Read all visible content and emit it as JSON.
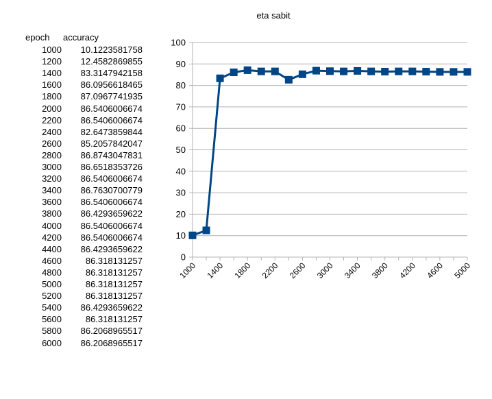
{
  "chart_data": {
    "type": "line",
    "title": "eta sabit",
    "xlabel": "",
    "ylabel": "",
    "ylim": [
      0,
      100
    ],
    "yticks": [
      0,
      10,
      20,
      30,
      40,
      50,
      60,
      70,
      80,
      90,
      100
    ],
    "x_tick_labels": [
      "1000",
      "1400",
      "1800",
      "2200",
      "2600",
      "3000",
      "3400",
      "3800",
      "4200",
      "4600",
      "5000"
    ],
    "grid": true,
    "color": "#004586",
    "marker": "square",
    "series": [
      {
        "x": [
          1000,
          1200,
          1400,
          1600,
          1800,
          2000,
          2200,
          2400,
          2600,
          2800,
          3000,
          3200,
          3400,
          3600,
          3800,
          4000,
          4200,
          4400,
          4600,
          4800,
          5000
        ],
        "values": [
          10.1223581758,
          12.4582869855,
          83.3147942158,
          86.0956618465,
          87.0967741935,
          86.5406006674,
          86.5406006674,
          82.6473859844,
          85.2057842047,
          86.8743047831,
          86.6518353726,
          86.5406006674,
          86.7630700779,
          86.5406006674,
          86.4293659622,
          86.5406006674,
          86.5406006674,
          86.4293659622,
          86.318131257,
          86.318131257,
          86.318131257
        ]
      }
    ]
  },
  "table": {
    "headers": [
      "epoch",
      "accuracy"
    ],
    "rows": [
      [
        "1000",
        "10.1223581758"
      ],
      [
        "1200",
        "12.4582869855"
      ],
      [
        "1400",
        "83.3147942158"
      ],
      [
        "1600",
        "86.0956618465"
      ],
      [
        "1800",
        "87.0967741935"
      ],
      [
        "2000",
        "86.5406006674"
      ],
      [
        "2200",
        "86.5406006674"
      ],
      [
        "2400",
        "82.6473859844"
      ],
      [
        "2600",
        "85.2057842047"
      ],
      [
        "2800",
        "86.8743047831"
      ],
      [
        "3000",
        "86.6518353726"
      ],
      [
        "3200",
        "86.5406006674"
      ],
      [
        "3400",
        "86.7630700779"
      ],
      [
        "3600",
        "86.5406006674"
      ],
      [
        "3800",
        "86.4293659622"
      ],
      [
        "4000",
        "86.5406006674"
      ],
      [
        "4200",
        "86.5406006674"
      ],
      [
        "4400",
        "86.4293659622"
      ],
      [
        "4600",
        "86.318131257"
      ],
      [
        "4800",
        "86.318131257"
      ],
      [
        "5000",
        "86.318131257"
      ],
      [
        "5200",
        "86.318131257"
      ],
      [
        "5400",
        "86.4293659622"
      ],
      [
        "5600",
        "86.318131257"
      ],
      [
        "5800",
        "86.2068965517"
      ],
      [
        "6000",
        "86.2068965517"
      ]
    ]
  }
}
